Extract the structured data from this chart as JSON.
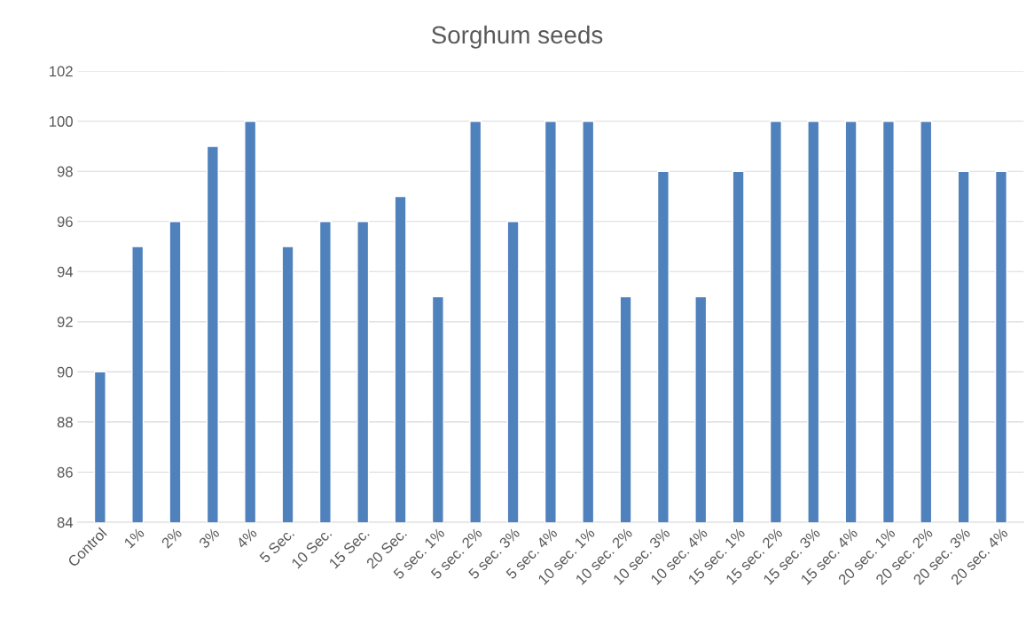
{
  "chart_data": {
    "type": "bar",
    "title": "Sorghum seeds",
    "categories": [
      "Control",
      "1%",
      "2%",
      "3%",
      "4%",
      "5 Sec.",
      "10 Sec.",
      "15 Sec.",
      "20 Sec.",
      "5 sec. 1%",
      "5 sec. 2%",
      "5 sec. 3%",
      "5 sec. 4%",
      "10 sec. 1%",
      "10 sec. 2%",
      "10 sec. 3%",
      "10 sec. 4%",
      "15 sec. 1%",
      "15 sec. 2%",
      "15 sec. 3%",
      "15 sec. 4%",
      "20 sec. 1%",
      "20 sec. 2%",
      "20 sec. 3%",
      "20 sec. 4%"
    ],
    "values": [
      90,
      95,
      96,
      99,
      100,
      95,
      96,
      96,
      97,
      93,
      100,
      96,
      100,
      100,
      93,
      98,
      93,
      98,
      100,
      100,
      100,
      100,
      100,
      98,
      98
    ],
    "color": "#4f81bd",
    "ylim": [
      84,
      102
    ],
    "yticks": [
      84,
      86,
      88,
      90,
      92,
      94,
      96,
      98,
      100,
      102
    ],
    "grid": "y"
  }
}
